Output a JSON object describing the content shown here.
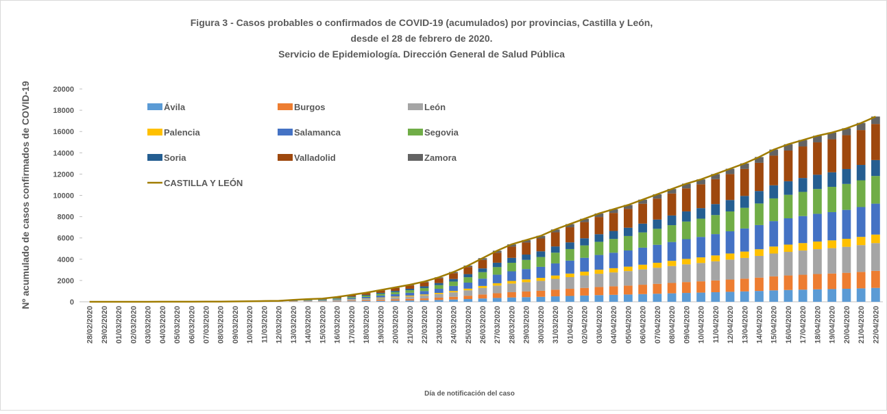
{
  "chart_data": {
    "type": "bar",
    "stacked": true,
    "title": [
      "Figura 3 - Casos probables o confirmados de COVID-19 (acumulados) por provincias, Castilla y León,",
      "desde el 28 de febrero de 2020.",
      "Servicio de Epidemiología. Dirección General de Salud Pública"
    ],
    "xlabel": "Día de notificación del caso",
    "ylabel": "Nº acumulado de casos confirmados de COVID-19",
    "categories": [
      "28/02/2020",
      "29/02/2020",
      "01/03/2020",
      "02/03/2020",
      "03/03/2020",
      "04/03/2020",
      "05/03/2020",
      "06/03/2020",
      "07/03/2020",
      "08/03/2020",
      "09/03/2020",
      "10/03/2020",
      "11/03/2020",
      "12/03/2020",
      "13/03/2020",
      "14/03/2020",
      "15/03/2020",
      "16/03/2020",
      "17/03/2020",
      "18/03/2020",
      "19/03/2020",
      "20/03/2020",
      "21/03/2020",
      "22/03/2020",
      "23/03/2020",
      "24/03/2020",
      "25/03/2020",
      "26/03/2020",
      "27/03/2020",
      "28/03/2020",
      "29/03/2020",
      "30/03/2020",
      "31/03/2020",
      "01/04/2020",
      "02/04/2020",
      "03/04/2020",
      "04/04/2020",
      "05/04/2020",
      "06/04/2020",
      "07/04/2020",
      "08/04/2020",
      "09/04/2020",
      "10/04/2020",
      "11/04/2020",
      "12/04/2020",
      "13/04/2020",
      "14/04/2020",
      "15/04/2020",
      "16/04/2020",
      "17/04/2020",
      "18/04/2020",
      "19/04/2020",
      "20/04/2020",
      "21/04/2020",
      "22/04/2020"
    ],
    "ylim": [
      0,
      20000
    ],
    "yticks": [
      0,
      2000,
      4000,
      6000,
      8000,
      10000,
      12000,
      14000,
      16000,
      18000,
      20000
    ],
    "series": [
      {
        "name": "Ávila",
        "color": "#5b9bd5",
        "values": [
          0,
          0,
          0,
          0,
          0,
          0,
          1,
          1,
          1,
          2,
          2,
          4,
          5,
          7,
          14,
          19,
          23,
          34,
          49,
          64,
          83,
          101,
          120,
          143,
          173,
          210,
          255,
          308,
          360,
          405,
          435,
          465,
          510,
          548,
          585,
          623,
          653,
          683,
          720,
          758,
          795,
          833,
          863,
          900,
          938,
          975,
          1020,
          1073,
          1110,
          1140,
          1170,
          1193,
          1223,
          1260,
          1305
        ]
      },
      {
        "name": "Burgos",
        "color": "#ed7d31",
        "values": [
          0,
          0,
          0,
          0,
          0,
          1,
          1,
          1,
          1,
          2,
          3,
          5,
          6,
          8,
          17,
          23,
          28,
          41,
          60,
          78,
          101,
          124,
          147,
          175,
          212,
          258,
          313,
          377,
          442,
          497,
          534,
          570,
          626,
          672,
          718,
          764,
          800,
          837,
          883,
          929,
          975,
          1021,
          1058,
          1104,
          1150,
          1196,
          1251,
          1316,
          1362,
          1398,
          1435,
          1463,
          1500,
          1546,
          1601
        ]
      },
      {
        "name": "León",
        "color": "#a5a5a5",
        "values": [
          0,
          0,
          0,
          0,
          1,
          1,
          1,
          2,
          2,
          3,
          5,
          8,
          11,
          14,
          27,
          38,
          45,
          68,
          98,
          128,
          165,
          203,
          240,
          285,
          345,
          420,
          510,
          615,
          720,
          810,
          870,
          930,
          1020,
          1095,
          1170,
          1245,
          1305,
          1365,
          1440,
          1515,
          1590,
          1665,
          1725,
          1800,
          1875,
          1950,
          2040,
          2145,
          2220,
          2280,
          2340,
          2385,
          2445,
          2520,
          2610
        ]
      },
      {
        "name": "Palencia",
        "color": "#ffc000",
        "values": [
          0,
          0,
          0,
          0,
          0,
          0,
          0,
          0,
          1,
          1,
          1,
          2,
          3,
          4,
          8,
          12,
          14,
          21,
          30,
          39,
          51,
          62,
          74,
          87,
          106,
          129,
          156,
          189,
          221,
          248,
          267,
          285,
          313,
          336,
          359,
          382,
          400,
          419,
          442,
          465,
          488,
          511,
          529,
          552,
          575,
          598,
          626,
          658,
          681,
          699,
          718,
          731,
          750,
          773,
          800
        ]
      },
      {
        "name": "Salamanca",
        "color": "#4472c4",
        "values": [
          0,
          0,
          0,
          0,
          1,
          1,
          1,
          2,
          3,
          3,
          5,
          8,
          12,
          15,
          30,
          42,
          50,
          75,
          109,
          142,
          184,
          225,
          267,
          317,
          384,
          468,
          568,
          685,
          802,
          902,
          969,
          1035,
          1136,
          1219,
          1303,
          1386,
          1453,
          1520,
          1603,
          1687,
          1770,
          1854,
          1921,
          2004,
          2088,
          2171,
          2271,
          2388,
          2472,
          2538,
          2605,
          2655,
          2722,
          2806,
          2906
        ]
      },
      {
        "name": "Segovia",
        "color": "#70ad47",
        "values": [
          0,
          0,
          0,
          0,
          0,
          1,
          1,
          1,
          2,
          3,
          4,
          7,
          10,
          13,
          26,
          37,
          44,
          66,
          96,
          126,
          163,
          200,
          237,
          282,
          342,
          416,
          505,
          609,
          713,
          802,
          862,
          922,
          1010,
          1085,
          1160,
          1235,
          1295,
          1355,
          1430,
          1505,
          1580,
          1655,
          1715,
          1790,
          1865,
          1940,
          2030,
          2135,
          2210,
          2270,
          2330,
          2375,
          2435,
          2510,
          2600
        ]
      },
      {
        "name": "Soria",
        "color": "#255e91",
        "values": [
          0,
          0,
          0,
          0,
          0,
          0,
          1,
          1,
          1,
          2,
          3,
          4,
          6,
          8,
          15,
          22,
          26,
          39,
          56,
          73,
          95,
          116,
          138,
          163,
          198,
          241,
          292,
          353,
          413,
          464,
          499,
          533,
          585,
          628,
          671,
          714,
          748,
          783,
          826,
          869,
          912,
          955,
          989,
          1032,
          1075,
          1118,
          1170,
          1230,
          1273,
          1307,
          1342,
          1367,
          1402,
          1445,
          1496
        ]
      },
      {
        "name": "Valladolid",
        "color": "#9e480e",
        "values": [
          0,
          0,
          0,
          0,
          0,
          1,
          2,
          2,
          3,
          4,
          6,
          10,
          14,
          18,
          35,
          49,
          59,
          88,
          127,
          166,
          215,
          263,
          312,
          371,
          449,
          546,
          663,
          800,
          936,
          1053,
          1131,
          1209,
          1326,
          1424,
          1521,
          1619,
          1697,
          1775,
          1872,
          1970,
          2067,
          2165,
          2243,
          2340,
          2438,
          2535,
          2652,
          2789,
          2886,
          2964,
          3042,
          3101,
          3179,
          3276,
          3393
        ]
      },
      {
        "name": "Zamora",
        "color": "#636363",
        "values": [
          0,
          0,
          0,
          0,
          0,
          0,
          0,
          0,
          1,
          1,
          1,
          2,
          3,
          4,
          7,
          10,
          12,
          18,
          26,
          34,
          44,
          54,
          64,
          76,
          92,
          112,
          136,
          164,
          192,
          216,
          232,
          248,
          272,
          292,
          312,
          332,
          348,
          364,
          384,
          404,
          424,
          444,
          460,
          480,
          500,
          520,
          544,
          572,
          592,
          608,
          624,
          636,
          652,
          672,
          696
        ]
      },
      {
        "name": "CASTILLA Y LEÓN",
        "color": "#a07c00",
        "type": "line",
        "values": [
          0,
          0,
          0,
          0,
          2,
          5,
          8,
          10,
          15,
          20,
          30,
          50,
          70,
          90,
          180,
          250,
          300,
          450,
          650,
          850,
          1100,
          1350,
          1600,
          1900,
          2300,
          2800,
          3400,
          4100,
          4800,
          5400,
          5800,
          6200,
          6800,
          7300,
          7800,
          8300,
          8700,
          9100,
          9600,
          10100,
          10600,
          11100,
          11500,
          12000,
          12500,
          13000,
          13600,
          14300,
          14800,
          15200,
          15600,
          15900,
          16300,
          16800,
          17400
        ]
      }
    ]
  }
}
